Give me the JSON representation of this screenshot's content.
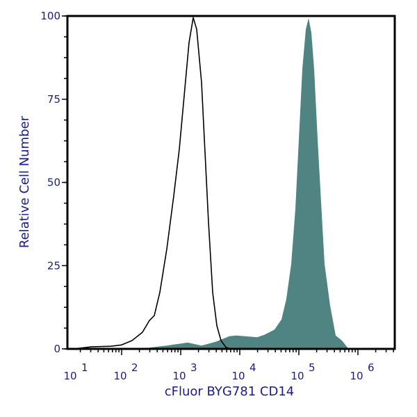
{
  "chart_data": {
    "type": "area",
    "title": "",
    "xlabel": "cFluor BYG781 CD14",
    "ylabel": "Relative Cell Number",
    "x_scale": "log",
    "xlim": [
      12,
      4200000
    ],
    "ylim": [
      0,
      100
    ],
    "x_ticks": [
      {
        "value": 10,
        "base": "10",
        "exp": "1"
      },
      {
        "value": 100,
        "base": "10",
        "exp": "2"
      },
      {
        "value": 1000,
        "base": "10",
        "exp": "3"
      },
      {
        "value": 10000,
        "base": "10",
        "exp": "4"
      },
      {
        "value": 100000,
        "base": "10",
        "exp": "5"
      },
      {
        "value": 1000000,
        "base": "10",
        "exp": "6"
      }
    ],
    "y_ticks": [
      {
        "value": 0,
        "label": "0"
      },
      {
        "value": 25,
        "label": "25"
      },
      {
        "value": 50,
        "label": "50"
      },
      {
        "value": 75,
        "label": "75"
      },
      {
        "value": 100,
        "label": "100"
      }
    ],
    "grid": false,
    "colors": {
      "text": "#1a1a8a",
      "stained_fill": "#4f8482",
      "control_line": "#000000",
      "axes": "#000000"
    },
    "series": [
      {
        "style": "filled",
        "color": "#4f8482",
        "x": [
          295,
          582,
          1312,
          2255,
          3873,
          6670,
          8730,
          19700,
          25800,
          38700,
          50800,
          61400,
          74300,
          87300,
          100000,
          114600,
          131200,
          146300,
          163000,
          181500,
          208000,
          237700,
          272300,
          338000,
          420000,
          536000,
          667000,
          762000
        ],
        "y": [
          0.4,
          1,
          1.9,
          1,
          2.1,
          3.8,
          4,
          3.5,
          4.2,
          5.8,
          8.8,
          15,
          25.5,
          42,
          63,
          84,
          96,
          99.4,
          95,
          84,
          63,
          44,
          25.5,
          13,
          4,
          2.5,
          0.4,
          0
        ]
      },
      {
        "style": "outline",
        "color": "#000000",
        "x": [
          15,
          30,
          66,
          100,
          150,
          225,
          295,
          357,
          444,
          582,
          762,
          947,
          1145,
          1384,
          1630,
          1866,
          2255,
          2582,
          2955,
          3475,
          4090,
          4810,
          5820,
          7030
        ],
        "y": [
          0,
          0.6,
          0.8,
          1.2,
          2.5,
          5,
          8.5,
          10,
          17,
          30,
          46,
          60,
          76,
          92,
          99.5,
          96,
          80,
          59,
          38,
          17,
          7,
          2.5,
          0.5,
          0
        ]
      }
    ]
  }
}
